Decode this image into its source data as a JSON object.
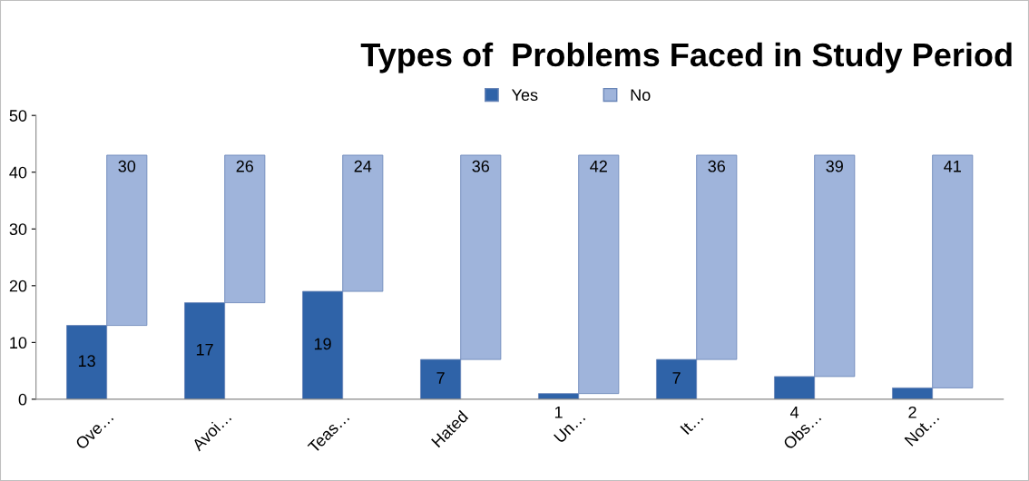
{
  "chart_data": {
    "type": "bar",
    "title": "Types of  Problems Faced in Study Period",
    "stacked": true,
    "categories": [
      "Ove…",
      "Avoi…",
      "Teas…",
      "Hated",
      "Un…",
      "It…",
      "Obs…",
      "Not…"
    ],
    "series": [
      {
        "name": "Yes",
        "color": "#2f63a8",
        "values": [
          13,
          17,
          19,
          7,
          1,
          7,
          4,
          2
        ]
      },
      {
        "name": "No",
        "color": "#9fb4db",
        "values": [
          30,
          26,
          24,
          36,
          42,
          36,
          39,
          41
        ]
      }
    ],
    "ylim": [
      0,
      50
    ],
    "yticks": [
      0,
      10,
      20,
      30,
      40,
      50
    ],
    "grid": false,
    "legend": "top",
    "data_labels": true
  }
}
